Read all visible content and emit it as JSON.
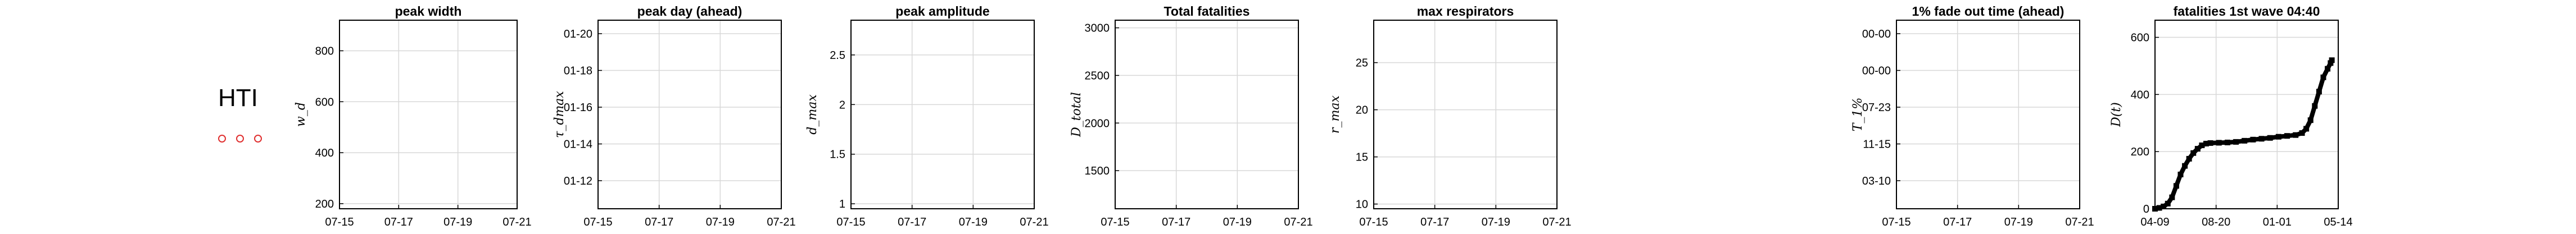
{
  "country": "HTI",
  "legend_markers": 3,
  "colors": {
    "axis": "#000000",
    "grid": "#d8d8d8",
    "series": "#000000",
    "marker": "#e03030"
  },
  "chart_data": [
    {
      "type": "line",
      "title": "peak width",
      "ylabel": "w_d",
      "xticks": [
        "07-15",
        "07-17",
        "07-19",
        "07-21"
      ],
      "yticks": [
        "200",
        "400",
        "600",
        "800"
      ],
      "ylim": [
        180,
        920
      ],
      "grid": true,
      "series": []
    },
    {
      "type": "line",
      "title": "peak day (ahead)",
      "ylabel": "τ_dmax",
      "xticks": [
        "07-15",
        "07-17",
        "07-19",
        "07-21"
      ],
      "yticks": [
        "01-12",
        "01-14",
        "01-16",
        "01-18",
        "01-20"
      ],
      "grid": true,
      "series": []
    },
    {
      "type": "line",
      "title": "peak amplitude",
      "ylabel": "d_max",
      "xticks": [
        "07-15",
        "07-17",
        "07-19",
        "07-21"
      ],
      "yticks": [
        "1",
        "1.5",
        "2",
        "2.5"
      ],
      "ylim": [
        0.95,
        2.85
      ],
      "grid": true,
      "series": []
    },
    {
      "type": "line",
      "title": "Total fatalities",
      "ylabel": "D_total",
      "xticks": [
        "07-15",
        "07-17",
        "07-19",
        "07-21"
      ],
      "yticks": [
        "1500",
        "2000",
        "2500",
        "3000"
      ],
      "ylim": [
        1100,
        3080
      ],
      "grid": true,
      "series": []
    },
    {
      "type": "line",
      "title": "max respirators",
      "ylabel": "r_max",
      "xticks": [
        "07-15",
        "07-17",
        "07-19",
        "07-21"
      ],
      "yticks": [
        "10",
        "15",
        "20",
        "25"
      ],
      "ylim": [
        9.5,
        29.5
      ],
      "grid": true,
      "series": []
    },
    {
      "type": "line",
      "title": "1% fade out time (ahead)",
      "ylabel": "T_1%",
      "xticks": [
        "07-15",
        "07-17",
        "07-19",
        "07-21"
      ],
      "yticks": [
        "03-10",
        "11-15",
        "07-23",
        "00-00",
        "00-00"
      ],
      "grid": true,
      "series": []
    },
    {
      "type": "line",
      "title": "fatalities 1st wave 04:40",
      "ylabel": "D(t)",
      "xticks": [
        "04-09",
        "08-20",
        "01-01",
        "05-14"
      ],
      "yticks": [
        "0",
        "200",
        "400",
        "600"
      ],
      "ylim": [
        0,
        660
      ],
      "xlim": [
        0,
        430
      ],
      "grid": true,
      "series": [
        {
          "points": [
            [
              0,
              0
            ],
            [
              10,
              3
            ],
            [
              20,
              8
            ],
            [
              30,
              18
            ],
            [
              40,
              40
            ],
            [
              50,
              80
            ],
            [
              60,
              120
            ],
            [
              70,
              150
            ],
            [
              80,
              175
            ],
            [
              90,
              195
            ],
            [
              100,
              210
            ],
            [
              110,
              222
            ],
            [
              120,
              228
            ],
            [
              130,
              230
            ],
            [
              150,
              231
            ],
            [
              170,
              232
            ],
            [
              190,
              234
            ],
            [
              210,
              238
            ],
            [
              230,
              242
            ],
            [
              250,
              245
            ],
            [
              270,
              248
            ],
            [
              290,
              252
            ],
            [
              310,
              255
            ],
            [
              330,
              258
            ],
            [
              345,
              265
            ],
            [
              355,
              280
            ],
            [
              365,
              310
            ],
            [
              375,
              360
            ],
            [
              385,
              410
            ],
            [
              395,
              460
            ],
            [
              405,
              490
            ],
            [
              412,
              510
            ],
            [
              415,
              520
            ]
          ]
        }
      ]
    }
  ]
}
